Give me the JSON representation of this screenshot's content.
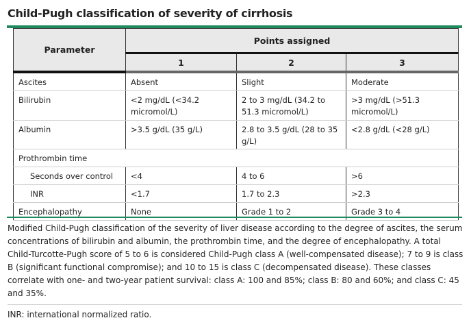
{
  "title": "Child-Pugh classification of severity of cirrhosis",
  "accent_color": "#1f8a5e",
  "table": {
    "param_header": "Parameter",
    "points_header": "Points assigned",
    "point_cols": [
      "1",
      "2",
      "3"
    ],
    "rows": [
      {
        "param": "Ascites",
        "values": [
          "Absent",
          "Slight",
          "Moderate"
        ]
      },
      {
        "param": "Bilirubin",
        "values": [
          "<2 mg/dL (<34.2 micromol/L)",
          "2 to 3 mg/dL (34.2 to 51.3 micromol/L)",
          ">3 mg/dL (>51.3 micromol/L)"
        ]
      },
      {
        "param": "Albumin",
        "values": [
          ">3.5 g/dL (35 g/L)",
          "2.8 to 3.5 g/dL (28 to 35 g/L)",
          "<2.8 g/dL (<28 g/L)"
        ]
      },
      {
        "param": "Prothrombin time"
      },
      {
        "param": "Seconds over control",
        "values": [
          "<4",
          "4 to 6",
          ">6"
        ]
      },
      {
        "param": "INR",
        "values": [
          "<1.7",
          "1.7 to 2.3",
          ">2.3"
        ]
      },
      {
        "param": "Encephalopathy",
        "values": [
          "None",
          "Grade 1 to 2",
          "Grade 3 to 4"
        ]
      }
    ]
  },
  "footnote": "Modified Child-Pugh classification of the severity of liver disease according to the degree of ascites, the serum concentrations of bilirubin and albumin, the prothrombin time, and the degree of encephalopathy. A total Child-Turcotte-Pugh score of 5 to 6 is considered Child-Pugh class A (well-compensated disease); 7 to 9 is class B (significant functional compromise); and 10 to 15 is class C (decompensated disease). These classes correlate with one- and two-year patient survival: class A: 100 and 85%; class B: 80 and 60%; and class C: 45 and 35%.",
  "abbreviation": "INR: international normalized ratio."
}
